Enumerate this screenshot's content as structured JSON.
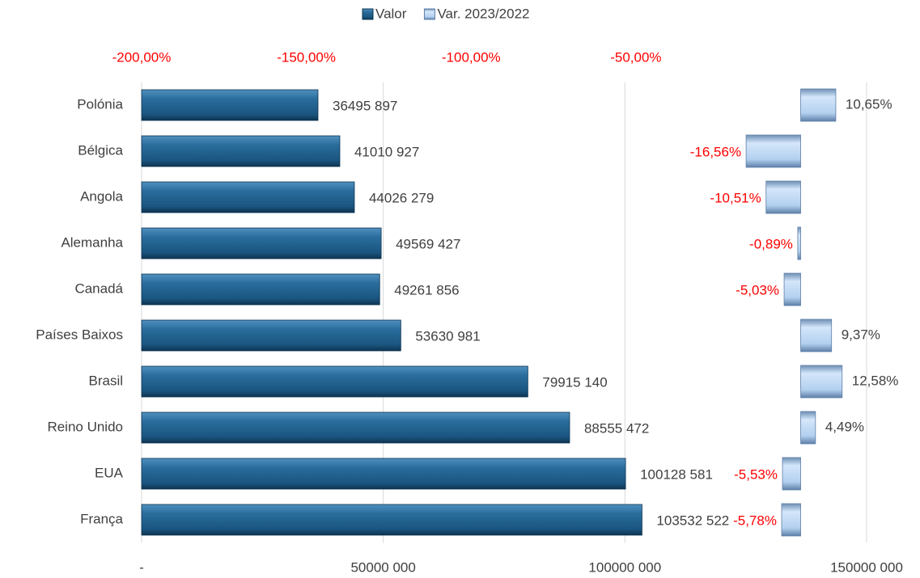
{
  "chart_data": {
    "type": "bar",
    "orientation": "horizontal",
    "categories": [
      "Polónia",
      "Bélgica",
      "Angola",
      "Alemanha",
      "Canadá",
      "Países Baixos",
      "Brasil",
      "Reino Unido",
      "EUA",
      "França"
    ],
    "series": [
      {
        "name": "Valor",
        "color": "#1f5f8b",
        "values": [
          36495897,
          41010927,
          44026279,
          49569427,
          49261856,
          53630981,
          79915140,
          88555472,
          100128581,
          103532522
        ],
        "value_labels": [
          "36495 897",
          "41010 927",
          "44026 279",
          "49569 427",
          "49261 856",
          "53630 981",
          "79915 140",
          "88555 472",
          "100128 581",
          "103532 522"
        ]
      },
      {
        "name": "Var. 2023/2022",
        "color": "#a9c9ec",
        "axis": "x2",
        "values": [
          10.65,
          -16.56,
          -10.51,
          -0.89,
          -5.03,
          9.37,
          12.58,
          4.49,
          -5.53,
          -5.78
        ],
        "value_labels": [
          "10,65%",
          "-16,56%",
          "-10,51%",
          "-0,89%",
          "-5,03%",
          "9,37%",
          "12,58%",
          "4,49%",
          "-5,53%",
          "-5,78%"
        ]
      }
    ],
    "xlim": [
      0,
      150000000
    ],
    "xticks": [
      {
        "value": 0,
        "label": "-"
      },
      {
        "value": 50000000,
        "label": "50000 000"
      },
      {
        "value": 100000000,
        "label": "100000 000"
      },
      {
        "value": 150000000,
        "label": "150000 000"
      }
    ],
    "x2lim": [
      -200,
      20
    ],
    "x2ticks": [
      {
        "value": -200,
        "label": "-200,00%"
      },
      {
        "value": -150,
        "label": "-150,00%"
      },
      {
        "value": -100,
        "label": "-100,00%"
      },
      {
        "value": -50,
        "label": "-50,00%"
      }
    ],
    "negative_color": "#ff0000",
    "grid": true,
    "legend": "top"
  }
}
